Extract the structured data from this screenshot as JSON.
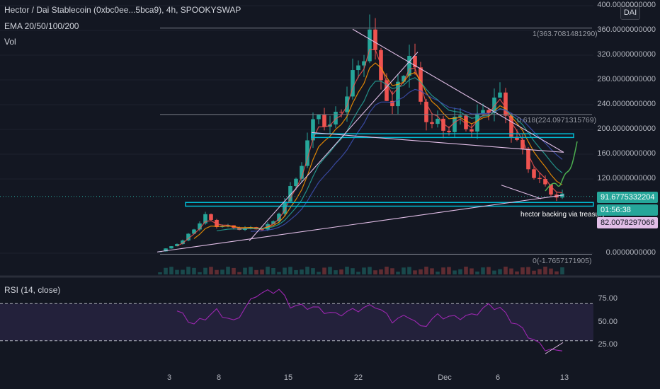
{
  "header": {
    "symbol_line": "Hector / Dai Stablecoin (0xbc0ee...5bca9), 4h, SPOOKYSWAP",
    "ema_line": "EMA 20/50/100/200",
    "vol_line": "Vol",
    "rsi_line": "RSI (14, close)",
    "currency_button": "DAI"
  },
  "colors": {
    "background": "#131722",
    "up_candle": "#26a69a",
    "down_candle": "#ef5350",
    "rsi_line": "#9c27b0",
    "rsi_band": "#7e57c2",
    "zone_line": "#00bcd4",
    "trend_line": "#e1bee7",
    "projection": "#4caf50"
  },
  "chart_data": [
    {
      "type": "candlestick",
      "title": "Hector / Dai Stablecoin (0xbc0ee...5bca9), 4h, SPOOKYSWAP",
      "indicators": [
        "EMA 20",
        "EMA 50",
        "EMA 100",
        "EMA 200",
        "Vol"
      ],
      "y_ticks": [
        "400.0000000000",
        "360.0000000000",
        "320.0000000000",
        "280.0000000000",
        "240.0000000000",
        "200.0000000000",
        "160.0000000000",
        "120.0000000000",
        "0.0000000000"
      ],
      "ylim": [
        -20,
        400
      ],
      "x_ticks": [
        "3",
        "8",
        "15",
        "22",
        "Dec",
        "6",
        "13"
      ],
      "price_path": [
        [
          0,
          3
        ],
        [
          4,
          20
        ],
        [
          8,
          60
        ],
        [
          10,
          45
        ],
        [
          14,
          40
        ],
        [
          18,
          40
        ],
        [
          20,
          50
        ],
        [
          24,
          120
        ],
        [
          26,
          180
        ],
        [
          28,
          230
        ],
        [
          30,
          200
        ],
        [
          33,
          260
        ],
        [
          35,
          300
        ],
        [
          37,
          360
        ],
        [
          38,
          310
        ],
        [
          40,
          260
        ],
        [
          41,
          230
        ],
        [
          43,
          300
        ],
        [
          44,
          330
        ],
        [
          46,
          240
        ],
        [
          48,
          210
        ],
        [
          50,
          200
        ],
        [
          52,
          215
        ],
        [
          55,
          205
        ],
        [
          57,
          225
        ],
        [
          59,
          255
        ],
        [
          60,
          245
        ],
        [
          62,
          200
        ],
        [
          64,
          160
        ],
        [
          65,
          140
        ],
        [
          67,
          115
        ],
        [
          69,
          100
        ],
        [
          70,
          92
        ],
        [
          71,
          91
        ]
      ],
      "last_price": "91.6775332204",
      "countdown": "01:56:38",
      "treasury_backing_price": "82.0078297066",
      "fib_levels": [
        {
          "label": "1(363.7081481290)",
          "value": 363.708
        },
        {
          "label": "0.618(224.0971315769)",
          "value": 224.097
        },
        {
          "label": "0(-1.7657171905)",
          "value": -1.766
        }
      ],
      "annotations": [
        "hector backing via treasury"
      ]
    },
    {
      "type": "line",
      "title": "RSI (14, close)",
      "y_ticks": [
        "75.00",
        "50.00",
        "25.00"
      ],
      "ylim": [
        10,
        90
      ],
      "band": [
        30,
        70
      ],
      "path": [
        [
          3,
          62
        ],
        [
          6,
          48
        ],
        [
          10,
          62
        ],
        [
          13,
          50
        ],
        [
          17,
          80
        ],
        [
          21,
          85
        ],
        [
          23,
          68
        ],
        [
          27,
          66
        ],
        [
          31,
          58
        ],
        [
          35,
          64
        ],
        [
          38,
          68
        ],
        [
          41,
          52
        ],
        [
          44,
          57
        ],
        [
          46,
          44
        ],
        [
          49,
          57
        ],
        [
          52,
          55
        ],
        [
          55,
          57
        ],
        [
          58,
          68
        ],
        [
          60,
          65
        ],
        [
          62,
          52
        ],
        [
          64,
          42
        ],
        [
          66,
          30
        ],
        [
          68,
          22
        ],
        [
          70,
          18
        ],
        [
          71,
          22
        ]
      ]
    }
  ]
}
